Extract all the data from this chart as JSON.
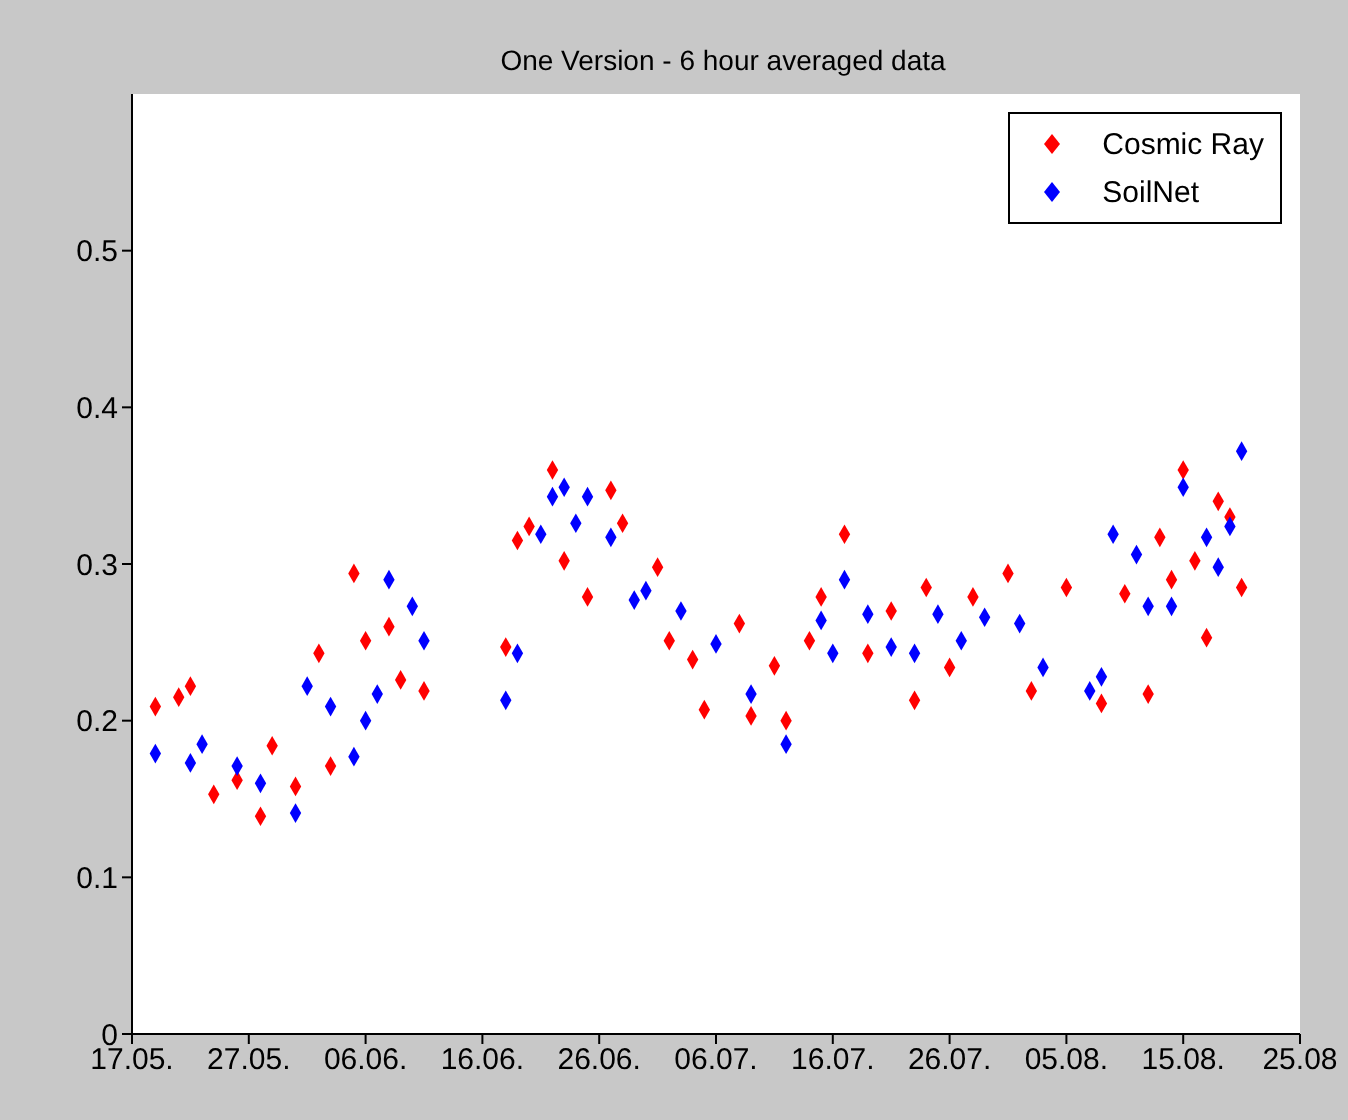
{
  "chart_data": {
    "type": "scatter",
    "title": "One Version - 6 hour averaged data",
    "marker": "diamond",
    "legend": "top right",
    "grid": false,
    "xlim": [
      "--05-17",
      "--08-25"
    ],
    "xticks": [
      {
        "value": "--05-17",
        "label": "17.05."
      },
      {
        "value": "--05-27",
        "label": "27.05."
      },
      {
        "value": "--06-06",
        "label": "06.06."
      },
      {
        "value": "--06-16",
        "label": "16.06."
      },
      {
        "value": "--06-26",
        "label": "26.06."
      },
      {
        "value": "--07-06",
        "label": "06.07."
      },
      {
        "value": "--07-16",
        "label": "16.07."
      },
      {
        "value": "--07-26",
        "label": "26.07."
      },
      {
        "value": "--08-05",
        "label": "05.08."
      },
      {
        "value": "--08-15",
        "label": "15.08."
      },
      {
        "value": "--08-25",
        "label": "25.08"
      }
    ],
    "ylim": [
      0,
      0.6
    ],
    "yticks": [
      0,
      0.1,
      0.2,
      0.3,
      0.4,
      0.5
    ],
    "series": [
      {
        "name": "Cosmic Ray",
        "color": "#ff0000",
        "x": [
          "--05-19",
          "--05-21",
          "--05-22",
          "--05-24",
          "--05-26",
          "--05-28",
          "--05-29",
          "--05-31",
          "--06-02",
          "--06-03",
          "--06-05",
          "--06-06",
          "--06-08",
          "--06-09",
          "--06-11",
          "--06-18",
          "--06-19",
          "--06-20",
          "--06-22",
          "--06-23",
          "--06-25",
          "--06-27",
          "--06-28",
          "--07-01",
          "--07-02",
          "--07-04",
          "--07-05",
          "--07-08",
          "--07-09",
          "--07-11",
          "--07-12",
          "--07-14",
          "--07-15",
          "--07-17",
          "--07-19",
          "--07-21",
          "--07-23",
          "--07-24",
          "--07-26",
          "--07-28",
          "--07-31",
          "--08-02",
          "--08-05",
          "--08-08",
          "--08-10",
          "--08-12",
          "--08-13",
          "--08-14",
          "--08-15",
          "--08-16",
          "--08-17",
          "--08-18",
          "--08-19",
          "--08-20"
        ],
        "values": [
          0.209,
          0.215,
          0.222,
          0.153,
          0.162,
          0.139,
          0.184,
          0.158,
          0.243,
          0.171,
          0.294,
          0.251,
          0.26,
          0.226,
          0.219,
          0.247,
          0.315,
          0.324,
          0.36,
          0.302,
          0.279,
          0.347,
          0.326,
          0.298,
          0.251,
          0.239,
          0.207,
          0.262,
          0.203,
          0.235,
          0.2,
          0.251,
          0.279,
          0.319,
          0.243,
          0.27,
          0.213,
          0.285,
          0.234,
          0.279,
          0.294,
          0.219,
          0.285,
          0.211,
          0.281,
          0.217,
          0.317,
          0.29,
          0.36,
          0.302,
          0.253,
          0.34,
          0.33,
          0.285
        ]
      },
      {
        "name": "SoilNet",
        "color": "#0000ff",
        "x": [
          "--05-19",
          "--05-22",
          "--05-23",
          "--05-26",
          "--05-28",
          "--05-31",
          "--06-01",
          "--06-03",
          "--06-05",
          "--06-06",
          "--06-07",
          "--06-08",
          "--06-10",
          "--06-11",
          "--06-18",
          "--06-19",
          "--06-21",
          "--06-22",
          "--06-23",
          "--06-24",
          "--06-25",
          "--06-27",
          "--06-29",
          "--06-30",
          "--07-03",
          "--07-06",
          "--07-09",
          "--07-12",
          "--07-15",
          "--07-16",
          "--07-17",
          "--07-19",
          "--07-21",
          "--07-23",
          "--07-25",
          "--07-27",
          "--07-29",
          "--08-01",
          "--08-03",
          "--08-07",
          "--08-08",
          "--08-09",
          "--08-11",
          "--08-12",
          "--08-14",
          "--08-15",
          "--08-17",
          "--08-18",
          "--08-19",
          "--08-20"
        ],
        "values": [
          0.179,
          0.173,
          0.185,
          0.171,
          0.16,
          0.141,
          0.222,
          0.209,
          0.177,
          0.2,
          0.217,
          0.29,
          0.273,
          0.251,
          0.213,
          0.243,
          0.319,
          0.343,
          0.349,
          0.326,
          0.343,
          0.317,
          0.277,
          0.283,
          0.27,
          0.249,
          0.217,
          0.185,
          0.264,
          0.243,
          0.29,
          0.268,
          0.247,
          0.243,
          0.268,
          0.251,
          0.266,
          0.262,
          0.234,
          0.219,
          0.228,
          0.319,
          0.306,
          0.273,
          0.273,
          0.349,
          0.317,
          0.298,
          0.324,
          0.372
        ]
      }
    ]
  }
}
